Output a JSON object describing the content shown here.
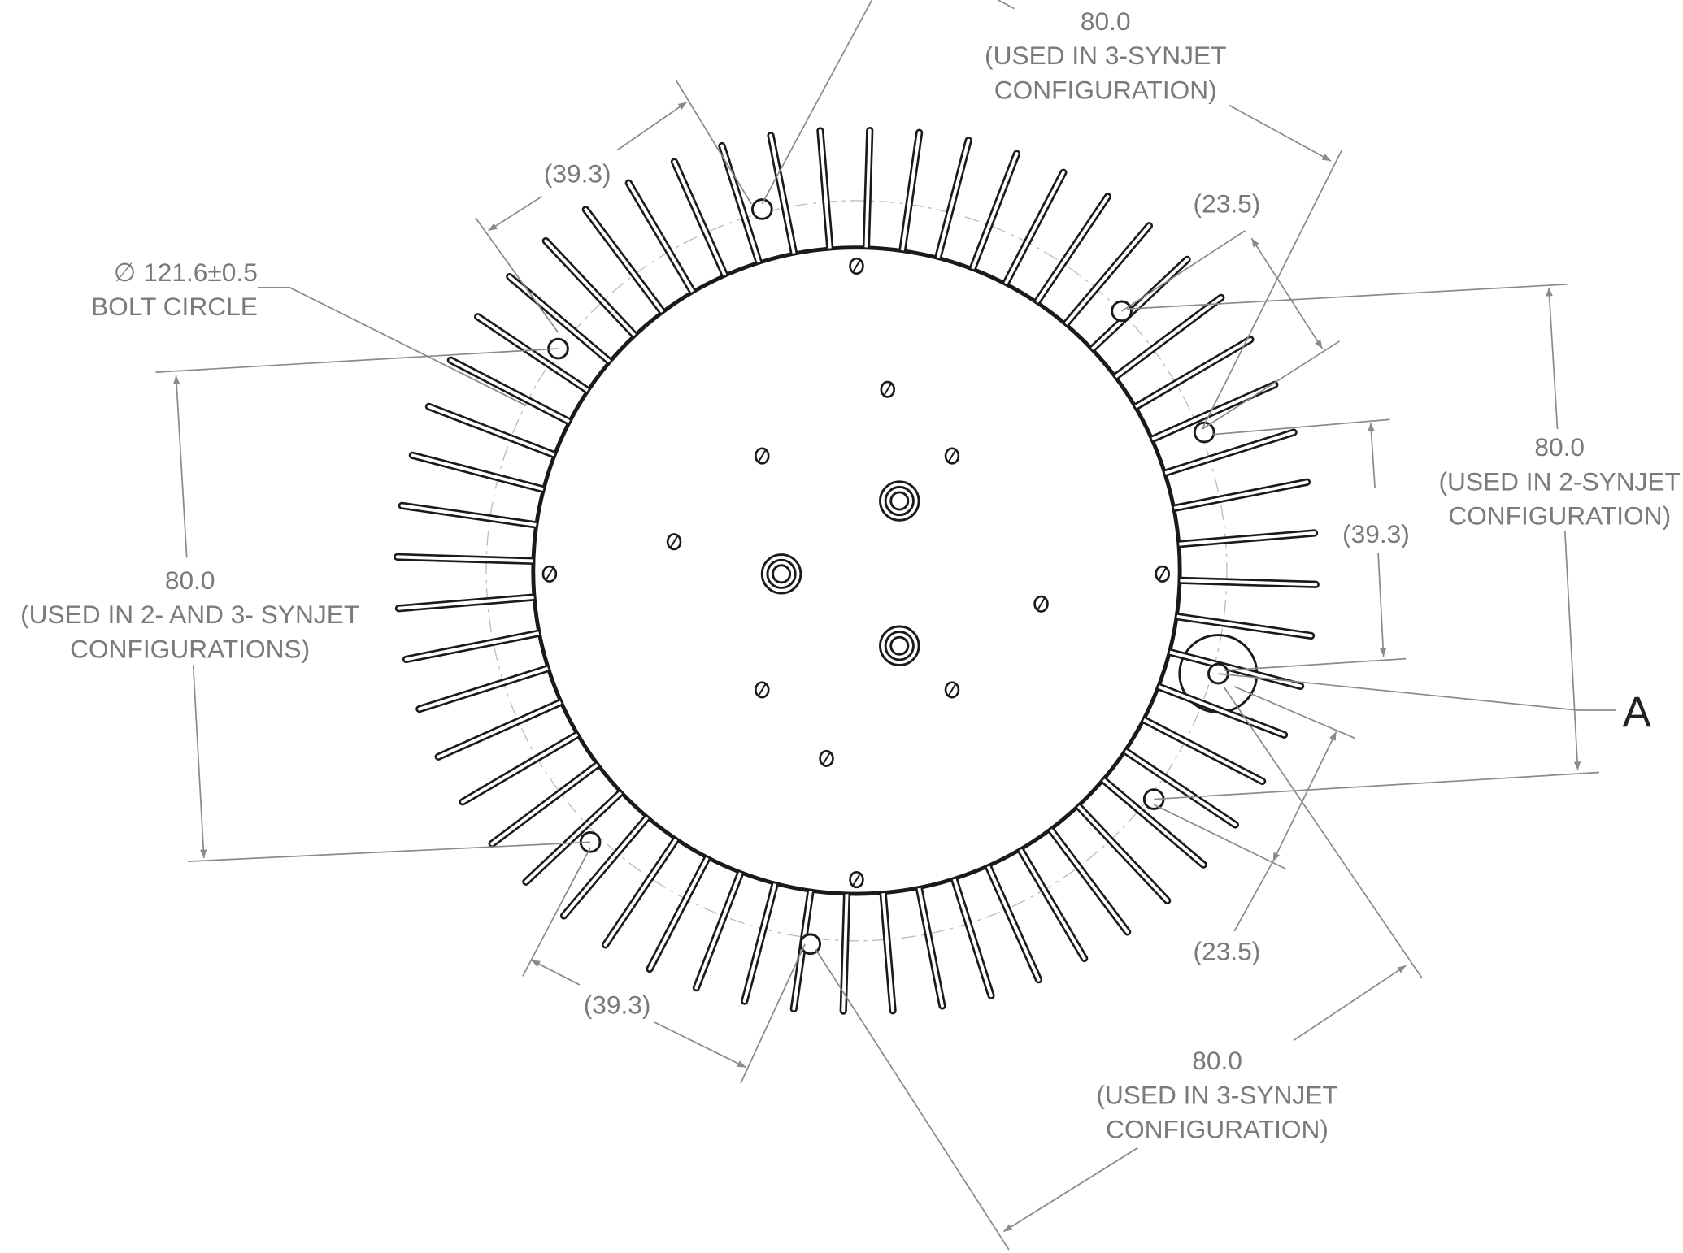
{
  "labels": [
    {
      "lines": [
        "80.0",
        "(USED IN 3-SYNJET",
        "CONFIGURATION)"
      ]
    },
    {
      "lines": [
        "(39.3)"
      ]
    },
    {
      "lines": [
        "(23.5)"
      ]
    },
    {
      "lines": [
        "∅ 121.6±0.5",
        "BOLT CIRCLE"
      ]
    },
    {
      "lines": [
        "80.0",
        "(USED IN 2-SYNJET",
        "CONFIGURATION)"
      ]
    },
    {
      "lines": [
        "(39.3)"
      ]
    },
    {
      "lines": [
        "80.0",
        "(USED IN 2- AND 3- SYNJET",
        "CONFIGURATIONS)"
      ]
    },
    {
      "lines": [
        "A"
      ]
    },
    {
      "lines": [
        "(23.5)"
      ]
    },
    {
      "lines": [
        "(39.3)"
      ]
    },
    {
      "lines": [
        "80.0",
        "(USED IN 3-SYNJET",
        "CONFIGURATION)"
      ]
    }
  ]
}
